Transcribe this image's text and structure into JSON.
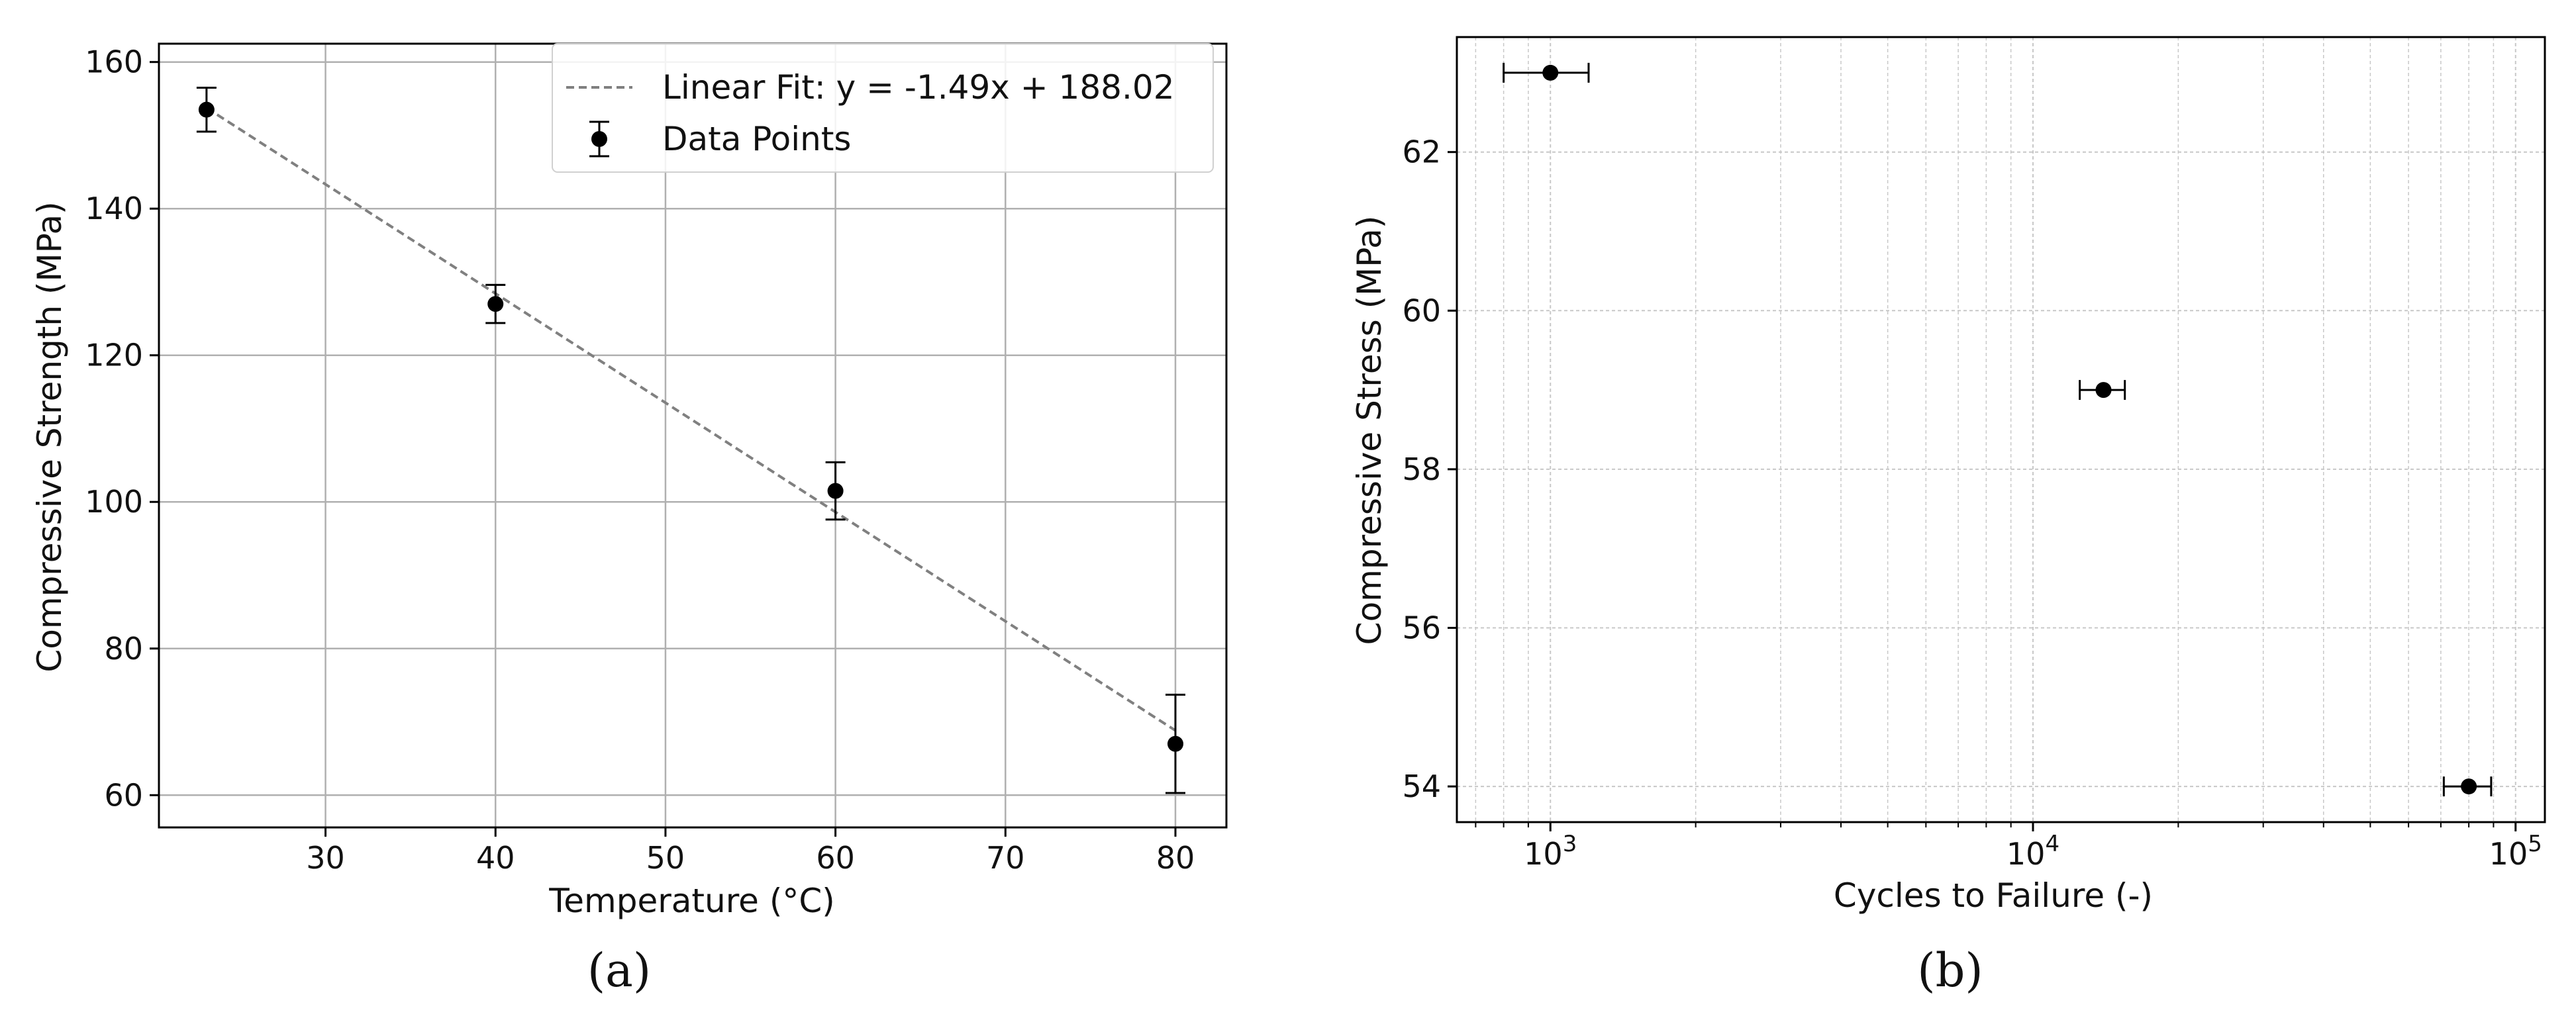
{
  "chart_data": [
    {
      "type": "scatter",
      "panel_label": "(a)",
      "xlabel": "Temperature (°C)",
      "ylabel": "Compressive Strength (MPa)",
      "xlim": [
        20.2,
        83.0
      ],
      "ylim": [
        55.6,
        162.5
      ],
      "xticks": [
        30,
        40,
        50,
        60,
        70,
        80
      ],
      "yticks": [
        60,
        80,
        100,
        120,
        140,
        160
      ],
      "grid": true,
      "legend": {
        "placement": "top-right",
        "fit_label": "Linear Fit: y = -1.49x + 188.02",
        "points_label": "Data Points"
      },
      "fit": {
        "slope": -1.49,
        "intercept": 188.02,
        "x_range": [
          23,
          80
        ]
      },
      "points": [
        {
          "x": 23,
          "y": 153.5,
          "yerr": 3.0
        },
        {
          "x": 40,
          "y": 127.0,
          "yerr": 2.6
        },
        {
          "x": 60,
          "y": 101.5,
          "yerr": 3.9
        },
        {
          "x": 80,
          "y": 67.0,
          "yerr": 6.7
        }
      ],
      "colors": {
        "fit_line": "#808080",
        "points": "#000000",
        "grid": "#b0b0b0"
      }
    },
    {
      "type": "scatter",
      "panel_label": "(b)",
      "xlabel": "Cycles to Failure (-)",
      "ylabel": "Compressive Stress (MPa)",
      "xscale": "log",
      "xlim": [
        640,
        115000
      ],
      "ylim": [
        53.55,
        63.45
      ],
      "xticks": [
        1000,
        10000,
        100000
      ],
      "xtick_labels": [
        {
          "base": "10",
          "exp": "3"
        },
        {
          "base": "10",
          "exp": "4"
        },
        {
          "base": "10",
          "exp": "5"
        }
      ],
      "yticks": [
        54,
        56,
        58,
        60,
        62
      ],
      "grid": true,
      "points": [
        {
          "x": 1000,
          "y": 63.0,
          "xerr": [
            200,
            200
          ]
        },
        {
          "x": 14000,
          "y": 59.0,
          "xerr": [
            1500,
            1500
          ]
        },
        {
          "x": 80000,
          "y": 54.0,
          "xerr": [
            9000,
            9000
          ]
        }
      ],
      "colors": {
        "points": "#000000",
        "grid": "#c8c8c8"
      }
    }
  ]
}
